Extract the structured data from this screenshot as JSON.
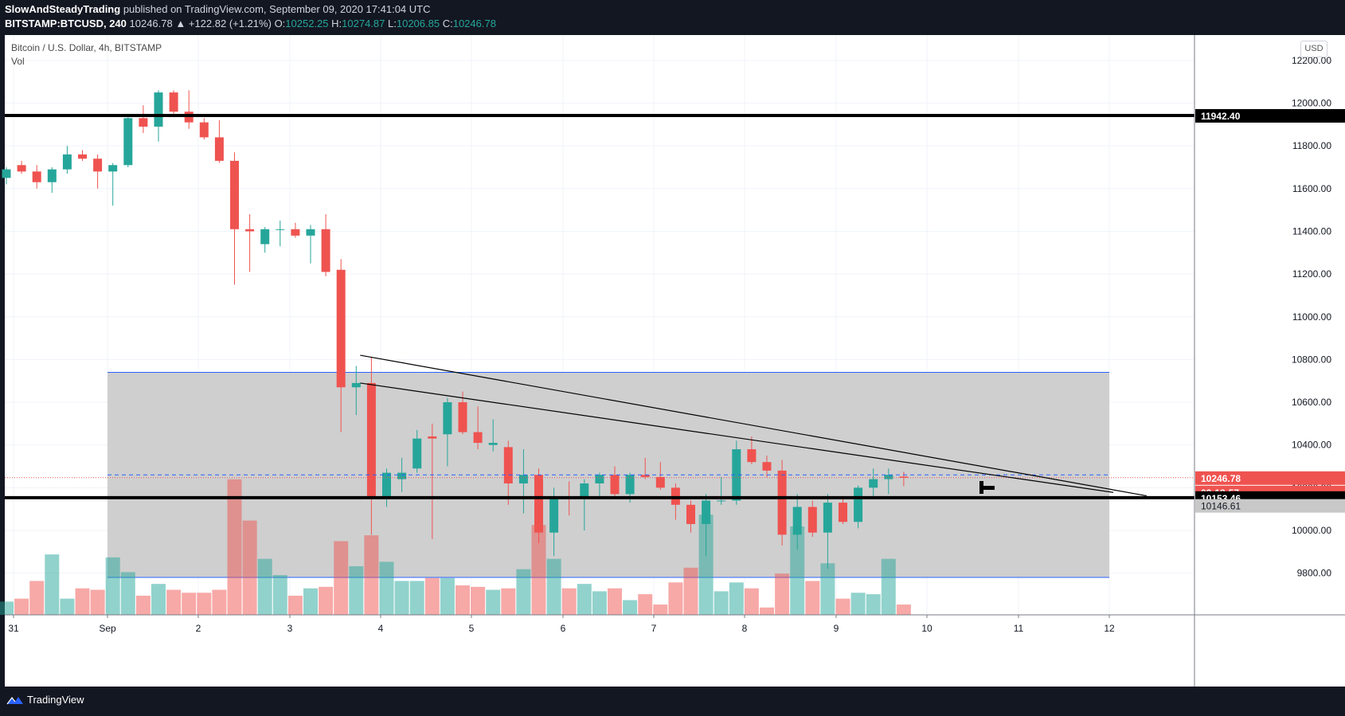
{
  "header": {
    "author": "SlowAndSteadyTrading",
    "published_text": "published on TradingView.com, September 09, 2020 17:41:04 UTC",
    "symbol": "BITSTAMP:BTCUSD, 240",
    "last": "10246.78",
    "change": "▲ +122.82 (+1.21%)",
    "o_label": "O:",
    "o": "10252.25",
    "h_label": "H:",
    "h": "10274.87",
    "l_label": "L:",
    "l": "10206.85",
    "c_label": "C:",
    "c": "10246.78"
  },
  "legend": {
    "title": "Bitcoin / U.S. Dollar, 4h, BITSTAMP",
    "vol": "Vol"
  },
  "currency_button": "USD",
  "footer": {
    "brand": "TradingView"
  },
  "colors": {
    "up": "#26a69a",
    "down": "#ef5350",
    "background": "#131722",
    "zone": "#cccccc"
  },
  "chart_data": {
    "type": "candlestick",
    "title": "Bitcoin / U.S. Dollar, 4h, BITSTAMP",
    "ylim": [
      9630,
      12300
    ],
    "y_ticks": [
      9800,
      10000,
      10200,
      10400,
      10600,
      10800,
      11000,
      11200,
      11400,
      11600,
      11800,
      12000,
      12200
    ],
    "x_tick_labels": [
      "31",
      "Sep",
      "2",
      "3",
      "4",
      "5",
      "6",
      "7",
      "8",
      "9",
      "10",
      "11",
      "12"
    ],
    "price_labels": [
      {
        "value": 11942.4,
        "text": "11942.40",
        "style": "black"
      },
      {
        "value": 10246.78,
        "text": "10246.78",
        "style": "red"
      },
      {
        "value": 10246.78,
        "text": "02:18:57",
        "style": "red-countdown"
      },
      {
        "value": 10153.46,
        "text": "10153.46",
        "style": "black"
      },
      {
        "value": 10146.61,
        "text": "10146.61",
        "style": "grey"
      }
    ],
    "candles": [
      {
        "o": 11650,
        "h": 11700,
        "l": 11620,
        "c": 11690
      },
      {
        "o": 11710,
        "h": 11730,
        "l": 11670,
        "c": 11680
      },
      {
        "o": 11680,
        "h": 11710,
        "l": 11600,
        "c": 11630
      },
      {
        "o": 11630,
        "h": 11700,
        "l": 11580,
        "c": 11690
      },
      {
        "o": 11690,
        "h": 11800,
        "l": 11670,
        "c": 11760
      },
      {
        "o": 11760,
        "h": 11780,
        "l": 11730,
        "c": 11740
      },
      {
        "o": 11740,
        "h": 11760,
        "l": 11600,
        "c": 11680
      },
      {
        "o": 11680,
        "h": 11720,
        "l": 11520,
        "c": 11710
      },
      {
        "o": 11710,
        "h": 11950,
        "l": 11700,
        "c": 11930
      },
      {
        "o": 11930,
        "h": 11990,
        "l": 11860,
        "c": 11890
      },
      {
        "o": 11890,
        "h": 12060,
        "l": 11820,
        "c": 12050
      },
      {
        "o": 12050,
        "h": 12060,
        "l": 11950,
        "c": 11960
      },
      {
        "o": 11960,
        "h": 12060,
        "l": 11880,
        "c": 11910
      },
      {
        "o": 11910,
        "h": 11930,
        "l": 11830,
        "c": 11840
      },
      {
        "o": 11840,
        "h": 11920,
        "l": 11720,
        "c": 11730
      },
      {
        "o": 11730,
        "h": 11770,
        "l": 11150,
        "c": 11410
      },
      {
        "o": 11410,
        "h": 11480,
        "l": 11210,
        "c": 11400
      },
      {
        "o": 11340,
        "h": 11420,
        "l": 11300,
        "c": 11410
      },
      {
        "o": 11410,
        "h": 11450,
        "l": 11330,
        "c": 11410
      },
      {
        "o": 11410,
        "h": 11440,
        "l": 11370,
        "c": 11380
      },
      {
        "o": 11380,
        "h": 11430,
        "l": 11250,
        "c": 11410
      },
      {
        "o": 11410,
        "h": 11480,
        "l": 11190,
        "c": 11210
      },
      {
        "o": 11220,
        "h": 11270,
        "l": 10460,
        "c": 10670
      },
      {
        "o": 10670,
        "h": 10770,
        "l": 10540,
        "c": 10690
      },
      {
        "o": 10690,
        "h": 10810,
        "l": 9980,
        "c": 10160
      },
      {
        "o": 10160,
        "h": 10290,
        "l": 10110,
        "c": 10270
      },
      {
        "o": 10240,
        "h": 10340,
        "l": 10180,
        "c": 10270
      },
      {
        "o": 10290,
        "h": 10470,
        "l": 10270,
        "c": 10430
      },
      {
        "o": 10440,
        "h": 10500,
        "l": 9960,
        "c": 10430
      },
      {
        "o": 10450,
        "h": 10620,
        "l": 10300,
        "c": 10600
      },
      {
        "o": 10600,
        "h": 10650,
        "l": 10450,
        "c": 10460
      },
      {
        "o": 10460,
        "h": 10580,
        "l": 10380,
        "c": 10410
      },
      {
        "o": 10400,
        "h": 10520,
        "l": 10370,
        "c": 10410
      },
      {
        "o": 10390,
        "h": 10420,
        "l": 10120,
        "c": 10220
      },
      {
        "o": 10220,
        "h": 10380,
        "l": 10080,
        "c": 10260
      },
      {
        "o": 10260,
        "h": 10290,
        "l": 9940,
        "c": 9990
      },
      {
        "o": 9990,
        "h": 10200,
        "l": 9880,
        "c": 10160
      },
      {
        "o": 10160,
        "h": 10230,
        "l": 10070,
        "c": 10150
      },
      {
        "o": 10150,
        "h": 10240,
        "l": 10000,
        "c": 10220
      },
      {
        "o": 10220,
        "h": 10270,
        "l": 10150,
        "c": 10260
      },
      {
        "o": 10260,
        "h": 10300,
        "l": 10160,
        "c": 10170
      },
      {
        "o": 10170,
        "h": 10270,
        "l": 10130,
        "c": 10260
      },
      {
        "o": 10260,
        "h": 10340,
        "l": 10240,
        "c": 10250
      },
      {
        "o": 10250,
        "h": 10320,
        "l": 10190,
        "c": 10200
      },
      {
        "o": 10200,
        "h": 10220,
        "l": 10050,
        "c": 10120
      },
      {
        "o": 10120,
        "h": 10140,
        "l": 9990,
        "c": 10030
      },
      {
        "o": 10030,
        "h": 10170,
        "l": 9880,
        "c": 10140
      },
      {
        "o": 10140,
        "h": 10250,
        "l": 10120,
        "c": 10140
      },
      {
        "o": 10140,
        "h": 10420,
        "l": 10120,
        "c": 10380
      },
      {
        "o": 10380,
        "h": 10440,
        "l": 10310,
        "c": 10320
      },
      {
        "o": 10320,
        "h": 10350,
        "l": 10250,
        "c": 10280
      },
      {
        "o": 10280,
        "h": 10330,
        "l": 9930,
        "c": 9980
      },
      {
        "o": 9980,
        "h": 10170,
        "l": 9910,
        "c": 10110
      },
      {
        "o": 10110,
        "h": 10140,
        "l": 9970,
        "c": 9990
      },
      {
        "o": 9990,
        "h": 10170,
        "l": 9820,
        "c": 10130
      },
      {
        "o": 10130,
        "h": 10150,
        "l": 10030,
        "c": 10040
      },
      {
        "o": 10040,
        "h": 10210,
        "l": 10010,
        "c": 10200
      },
      {
        "o": 10200,
        "h": 10290,
        "l": 10160,
        "c": 10240
      },
      {
        "o": 10240,
        "h": 10290,
        "l": 10170,
        "c": 10260
      },
      {
        "o": 10252.25,
        "h": 10274.87,
        "l": 10206.85,
        "c": 10246.78
      }
    ],
    "volume": [
      9,
      11,
      23,
      41,
      11,
      18,
      17,
      39,
      29,
      13,
      21,
      17,
      15,
      15,
      17,
      92,
      64,
      38,
      27,
      13,
      18,
      19,
      50,
      33,
      54,
      36,
      23,
      23,
      25,
      25,
      20,
      19,
      17,
      18,
      31,
      61,
      38,
      18,
      21,
      16,
      18,
      10,
      14,
      7,
      22,
      32,
      68,
      16,
      22,
      18,
      5,
      28,
      60,
      23,
      35,
      11,
      15,
      14,
      38,
      7
    ],
    "support_zone": [
      9780,
      10740
    ],
    "horizontal_levels": [
      11942.4,
      10153.46
    ],
    "dashed_level": 10260,
    "trendlines": [
      {
        "from": [
          23,
          10820
        ],
        "to": [
          64,
          10162
        ]
      },
      {
        "from": [
          23,
          10690
        ],
        "to": [
          62,
          10178
        ]
      }
    ]
  }
}
